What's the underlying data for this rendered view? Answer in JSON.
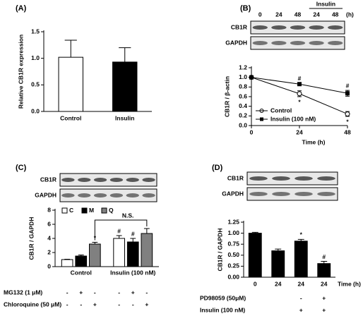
{
  "chart_data": [
    {
      "panel": "(A)",
      "type": "bar",
      "ylabel": "Relative CB1R expression",
      "categories": [
        "Control",
        "Insulin"
      ],
      "values": [
        1.02,
        0.93
      ],
      "errors": [
        0.32,
        0.27
      ],
      "colors": [
        "#ffffff",
        "#000000"
      ],
      "ylim": [
        0,
        1.5
      ],
      "yticks": [
        {
          "value": 0,
          "label": "0.0"
        },
        {
          "value": 0.5,
          "label": "0.5"
        },
        {
          "value": 1,
          "label": "1.0"
        },
        {
          "value": 1.5,
          "label": "1.5"
        }
      ]
    },
    {
      "panel": "(B)",
      "type": "line",
      "ylabel": "CB1R / β-actin",
      "xlabel": "Time (h)",
      "blot": {
        "rows": [
          "CB1R",
          "GAPDH"
        ],
        "lanes": [
          "0",
          "24",
          "48",
          "24",
          "48"
        ],
        "time_unit": "(h)",
        "group_label": "Insulin"
      },
      "x": [
        0,
        24,
        48
      ],
      "xlim": [
        0,
        48
      ],
      "xticks": [
        0,
        24,
        48
      ],
      "series": [
        {
          "name": "Control",
          "color": "#000000",
          "marker": "open-circle",
          "values": [
            1.0,
            0.66,
            0.24
          ],
          "errors": [
            0.02,
            0.06,
            0.05
          ],
          "annotations": [
            null,
            "*",
            "*"
          ]
        },
        {
          "name": "Insulin (100 nM)",
          "color": "#000000",
          "marker": "square",
          "values": [
            1.0,
            0.86,
            0.67
          ],
          "errors": [
            0.02,
            0.02,
            0.06
          ],
          "annotations": [
            null,
            "#",
            "#"
          ]
        }
      ],
      "ylim": [
        0,
        1.2
      ],
      "yticks": [
        {
          "value": 0,
          "label": "0.0"
        },
        {
          "value": 0.2,
          "label": "0.2"
        },
        {
          "value": 0.4,
          "label": "0.4"
        },
        {
          "value": 0.6,
          "label": "0.6"
        },
        {
          "value": 0.8,
          "label": "0.8"
        },
        {
          "value": 1,
          "label": "1.0"
        },
        {
          "value": 1.2,
          "label": "1.2"
        }
      ]
    },
    {
      "panel": "(C)",
      "type": "grouped_bar",
      "ylabel": "CB1R / GAPDH",
      "blot": {
        "rows": [
          "CB1R",
          "GAPDH"
        ]
      },
      "categories": [
        "Control",
        "Insulin (100 nM)"
      ],
      "series": [
        {
          "name": "C",
          "color": "#ffffff",
          "values": [
            1.0,
            4.0
          ],
          "errors": [
            0.05,
            0.4
          ],
          "annotations": [
            null,
            "#"
          ]
        },
        {
          "name": "M",
          "color": "#000000",
          "values": [
            1.5,
            3.5
          ],
          "errors": [
            0.15,
            0.5
          ],
          "annotations": [
            null,
            "#"
          ]
        },
        {
          "name": "Q",
          "color": "#808080",
          "values": [
            3.2,
            4.7
          ],
          "errors": [
            0.25,
            0.7
          ],
          "annotations": [
            "*",
            null
          ]
        }
      ],
      "bracket_label": "N.S.",
      "conditions": [
        {
          "name": "MG132 (1 μM)",
          "signs": [
            "-",
            "+",
            "-",
            "-",
            "+",
            "-"
          ]
        },
        {
          "name": "Chloroquine (50 μM)",
          "signs": [
            "-",
            "-",
            "+",
            "-",
            "-",
            "+"
          ]
        }
      ],
      "ylim": [
        0,
        8
      ],
      "yticks": [
        0,
        2,
        4,
        6,
        8
      ]
    },
    {
      "panel": "(D)",
      "type": "bar",
      "ylabel": "CB1R / GAPDH",
      "xlabel": "Time (h)",
      "blot": {
        "rows": [
          "CB1R",
          "GAPDH"
        ]
      },
      "categories": [
        "0",
        "24",
        "24",
        "24"
      ],
      "values": [
        1.0,
        0.6,
        0.82,
        0.31
      ],
      "errors": [
        0.02,
        0.04,
        0.04,
        0.05
      ],
      "color": "#000000",
      "annotations": [
        null,
        null,
        "*",
        "#"
      ],
      "conditions": [
        {
          "name": "PD98059 (50μM)",
          "signs": [
            null,
            null,
            "-",
            "+"
          ]
        },
        {
          "name": "Insulin (100 nM)",
          "signs": [
            null,
            null,
            "+",
            "+"
          ]
        }
      ],
      "ylim": [
        0,
        1.25
      ],
      "yticks": [
        {
          "value": 0,
          "label": "0.00"
        },
        {
          "value": 0.25,
          "label": "0.25"
        },
        {
          "value": 0.5,
          "label": "0.50"
        },
        {
          "value": 0.75,
          "label": "0.75"
        },
        {
          "value": 1,
          "label": "1.00"
        },
        {
          "value": 1.25,
          "label": "1.25"
        }
      ]
    }
  ]
}
